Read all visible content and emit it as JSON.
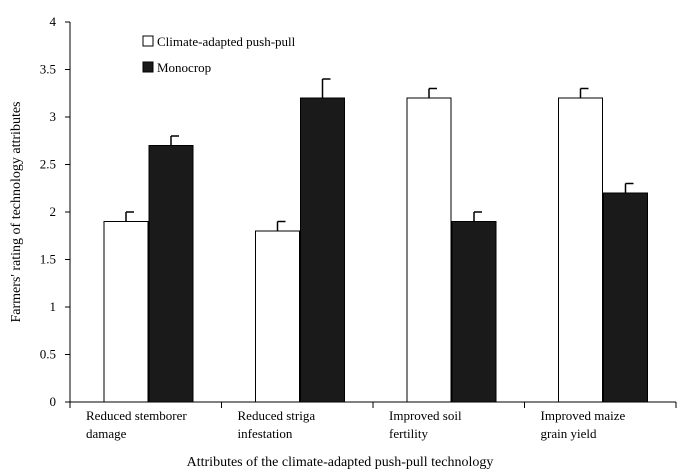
{
  "chart_data": {
    "type": "bar",
    "title": "",
    "xlabel": "Attributes of the climate-adapted push-pull technology",
    "ylabel": "Farmers' rating of technology attributes",
    "ylim": [
      0,
      4
    ],
    "yticks": [
      0,
      0.5,
      1,
      1.5,
      2,
      2.5,
      3,
      3.5,
      4
    ],
    "ytick_labels": [
      "0",
      "0.5",
      "1",
      "1.5",
      "2",
      "2.5",
      "3",
      "3.5",
      "4"
    ],
    "categories": [
      [
        "Reduced stemborer",
        "damage"
      ],
      [
        "Reduced striga",
        "infestation"
      ],
      [
        "Improved soil",
        "fertility"
      ],
      [
        "Improved maize",
        "grain yield"
      ]
    ],
    "series": [
      {
        "name": "Climate-adapted push-pull",
        "values": [
          1.9,
          1.8,
          3.2,
          3.2
        ],
        "errors": [
          0.1,
          0.1,
          0.1,
          0.1
        ],
        "color": "#ffffff"
      },
      {
        "name": "Monocrop",
        "values": [
          2.7,
          3.2,
          1.9,
          2.2
        ],
        "errors": [
          0.1,
          0.2,
          0.1,
          0.1
        ],
        "color": "#1a1a1a"
      }
    ],
    "legend_position": "top-left",
    "grid": false,
    "error_bars": true
  }
}
